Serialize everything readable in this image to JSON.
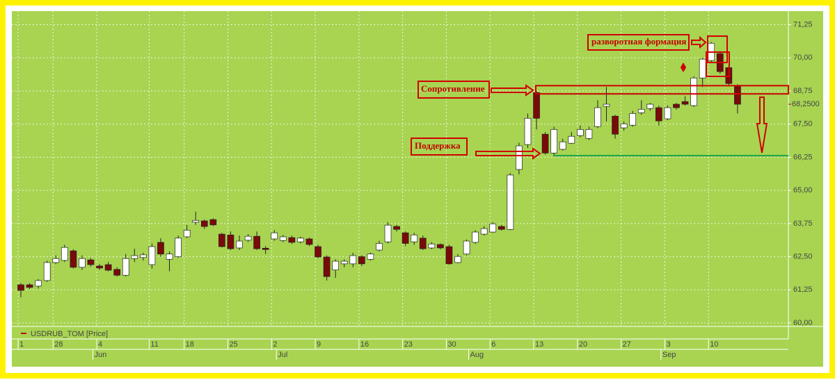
{
  "chart_data": {
    "type": "candlestick",
    "categories": [
      "1",
      null,
      null,
      null,
      "28",
      null,
      null,
      null,
      null,
      "4",
      null,
      null,
      null,
      null,
      null,
      "11",
      null,
      null,
      null,
      "18",
      null,
      null,
      null,
      null,
      "25",
      null,
      null,
      null,
      null,
      "2",
      null,
      null,
      null,
      null,
      "9",
      null,
      null,
      null,
      null,
      "16",
      null,
      null,
      null,
      null,
      "23",
      null,
      null,
      null,
      null,
      "30",
      null,
      null,
      null,
      null,
      "6",
      null,
      null,
      null,
      null,
      "13",
      null,
      null,
      null,
      null,
      "20",
      null,
      null,
      null,
      null,
      "27",
      null,
      null,
      null,
      null,
      "3",
      null,
      null,
      null,
      null,
      "10",
      null,
      null,
      null
    ],
    "months": [
      null,
      null,
      null,
      null,
      null,
      null,
      null,
      null,
      "Jun",
      null,
      null,
      null,
      null,
      null,
      null,
      null,
      null,
      null,
      null,
      null,
      null,
      null,
      null,
      null,
      null,
      null,
      null,
      null,
      null,
      "Jul",
      null,
      null,
      null,
      null,
      null,
      null,
      null,
      null,
      null,
      null,
      null,
      null,
      null,
      null,
      null,
      null,
      null,
      null,
      null,
      null,
      null,
      "Aug",
      null,
      null,
      null,
      null,
      null,
      null,
      null,
      null,
      null,
      null,
      null,
      null,
      null,
      null,
      null,
      null,
      null,
      null,
      null,
      null,
      null,
      "Sep",
      null,
      null,
      null,
      null,
      null,
      null,
      null,
      null
    ],
    "open": [
      61.44,
      61.44,
      61.39,
      61.6,
      62.28,
      62.36,
      62.72,
      62.1,
      62.38,
      62.15,
      62.2,
      62.02,
      61.8,
      62.43,
      62.47,
      62.2,
      63.04,
      62.4,
      62.5,
      63.25,
      63.8,
      63.85,
      63.9,
      63.35,
      63.32,
      62.83,
      63.12,
      63.27,
      62.82,
      63.17,
      63.11,
      63.22,
      63.06,
      63.17,
      62.88,
      62.49,
      62.0,
      62.23,
      62.23,
      62.5,
      62.4,
      62.75,
      63.06,
      63.64,
      63.4,
      63.06,
      63.2,
      62.83,
      62.96,
      62.88,
      62.28,
      62.6,
      63.04,
      63.35,
      63.43,
      63.64,
      63.53,
      65.79,
      66.73,
      68.69,
      67.12,
      66.41,
      66.55,
      66.78,
      67.07,
      66.96,
      67.41,
      68.17,
      67.8,
      67.36,
      67.46,
      67.93,
      68.09,
      68.12,
      67.7,
      68.25,
      68.35,
      68.2,
      69.24,
      69.9,
      70.16,
      69.63,
      68.93
    ],
    "high": [
      61.5,
      61.5,
      61.65,
      62.35,
      62.55,
      62.95,
      62.78,
      62.55,
      62.45,
      62.22,
      62.3,
      62.1,
      62.6,
      62.8,
      62.65,
      63.0,
      63.2,
      62.7,
      63.3,
      63.7,
      64.2,
      63.9,
      63.95,
      63.4,
      63.45,
      63.3,
      63.35,
      63.45,
      62.9,
      63.5,
      63.32,
      63.3,
      63.25,
      63.22,
      62.95,
      62.55,
      62.4,
      62.4,
      62.65,
      62.55,
      62.65,
      63.1,
      63.8,
      63.7,
      63.45,
      63.4,
      63.3,
      63.05,
      63.0,
      62.95,
      62.6,
      63.15,
      63.5,
      63.65,
      63.8,
      63.7,
      65.65,
      66.8,
      67.9,
      68.75,
      67.2,
      67.4,
      66.95,
      67.2,
      67.45,
      67.4,
      68.4,
      68.9,
      67.85,
      67.6,
      68.0,
      68.4,
      68.3,
      68.2,
      68.2,
      68.3,
      68.55,
      69.3,
      70.0,
      70.6,
      70.25,
      69.7,
      69.0
    ],
    "low": [
      60.97,
      61.28,
      61.3,
      61.55,
      62.22,
      62.3,
      62.05,
      62.0,
      62.12,
      62.0,
      61.95,
      61.75,
      61.75,
      62.3,
      62.35,
      62.05,
      62.5,
      61.95,
      62.45,
      63.2,
      63.7,
      63.55,
      63.65,
      62.85,
      62.75,
      62.75,
      63.05,
      62.75,
      62.6,
      63.1,
      63.05,
      62.98,
      63.0,
      62.9,
      62.45,
      61.6,
      61.7,
      62.1,
      62.1,
      62.15,
      62.35,
      62.7,
      63.0,
      63.45,
      62.9,
      62.95,
      62.75,
      62.78,
      62.78,
      62.2,
      62.25,
      62.55,
      62.98,
      63.3,
      63.4,
      63.48,
      63.5,
      65.6,
      66.6,
      67.3,
      66.35,
      66.3,
      66.5,
      66.75,
      67.0,
      66.9,
      67.35,
      67.6,
      66.95,
      67.25,
      67.4,
      67.85,
      68.0,
      67.45,
      67.65,
      68.05,
      68.2,
      68.15,
      68.9,
      69.85,
      69.4,
      68.95,
      67.9
    ],
    "close": [
      61.23,
      61.34,
      61.6,
      62.28,
      62.43,
      62.85,
      62.1,
      62.43,
      62.2,
      62.07,
      61.99,
      61.8,
      62.43,
      62.54,
      62.57,
      62.88,
      62.6,
      62.6,
      63.2,
      63.5,
      63.87,
      63.64,
      63.7,
      62.88,
      62.8,
      63.09,
      63.27,
      62.8,
      62.77,
      63.4,
      63.25,
      63.04,
      63.2,
      62.96,
      62.49,
      61.75,
      62.33,
      62.33,
      62.54,
      62.23,
      62.6,
      63.0,
      63.69,
      63.53,
      63.0,
      63.32,
      62.8,
      62.98,
      62.83,
      62.23,
      62.51,
      63.09,
      63.43,
      63.56,
      63.74,
      63.53,
      65.58,
      66.68,
      67.72,
      67.72,
      66.41,
      67.3,
      66.83,
      67.04,
      67.3,
      67.3,
      68.12,
      68.25,
      67.12,
      67.51,
      67.9,
      68.06,
      68.25,
      67.62,
      68.12,
      68.12,
      68.25,
      69.24,
      69.95,
      70.55,
      69.48,
      69.03,
      68.25
    ],
    "up_color": "#ffffff",
    "down_color": "#7a0a0a",
    "ylim": [
      60,
      71.5
    ],
    "yticks": [
      {
        "value": 60,
        "label": "60,00"
      },
      {
        "value": 61.25,
        "label": "61,25"
      },
      {
        "value": 62.5,
        "label": "62,50"
      },
      {
        "value": 63.75,
        "label": "63,75"
      },
      {
        "value": 65,
        "label": "65,00"
      },
      {
        "value": 66.25,
        "label": "66,25"
      },
      {
        "value": 67.5,
        "label": "67,50"
      },
      {
        "value": 68.75,
        "label": "68,75"
      },
      {
        "value": 70,
        "label": "70,00"
      },
      {
        "value": 71.25,
        "label": "71,25"
      }
    ],
    "last_price": {
      "value": 68.25,
      "label": "68,2500"
    },
    "legend": "USDRUB_TOM [Price]",
    "grid": true,
    "support_level": 66.31,
    "resistance_zone": [
      68.64,
      68.95
    ],
    "annotations": {
      "reversal": "разворотная формация",
      "resistance": "Сопротивление",
      "support": "Поддержка"
    }
  }
}
